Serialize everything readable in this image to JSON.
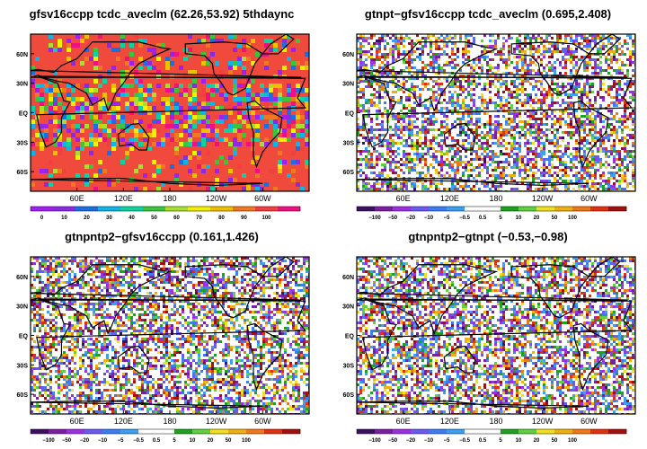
{
  "palettes": {
    "abs": [
      "#a020f0",
      "#8a2be2",
      "#1e6ee0",
      "#10b4e6",
      "#10d2a0",
      "#3cc43c",
      "#a8e030",
      "#f0f000",
      "#f0c000",
      "#f07820",
      "#f04040",
      "#f01080"
    ],
    "diff": [
      "#3c1060",
      "#7a1fa0",
      "#9b30e0",
      "#6a5af0",
      "#3c7cf0",
      "#3ca0f0",
      "#ffffff",
      "#ffffff",
      "#20a020",
      "#60d040",
      "#f0e020",
      "#f0b010",
      "#f07818",
      "#e03010",
      "#a01010"
    ]
  },
  "panels": [
    {
      "id": "p1",
      "title": "gfsv16ccpp  tcdc_aveclm  (62.26,53.92)  5thdaync",
      "type": "abs",
      "lon_labels": [
        "60E",
        "120E",
        "180",
        "120W",
        "60W"
      ],
      "lat_labels": [
        "60N",
        "30N",
        "EQ",
        "30S",
        "60S"
      ],
      "colorbar_labels": [
        "0",
        "10",
        "20",
        "30",
        "40",
        "50",
        "60",
        "70",
        "80",
        "90",
        "100"
      ]
    },
    {
      "id": "p2",
      "title": "gtnpt−gfsv16ccpp  tcdc_aveclm  (0.695,2.408)",
      "type": "diff",
      "lon_labels": [
        "60E",
        "120E",
        "180",
        "120W",
        "60W"
      ],
      "lat_labels": [
        "60N",
        "30N",
        "EQ",
        "30S",
        "60S"
      ],
      "colorbar_labels": [
        "−100",
        "−50",
        "−20",
        "−10",
        "−5",
        "−0.5",
        "0.5",
        "5",
        "10",
        "20",
        "50",
        "100"
      ]
    },
    {
      "id": "p3",
      "title": "gtnpntp2−gfsv16ccpp  (0.161,1.426)",
      "type": "diff",
      "lon_labels": [
        "60E",
        "120E",
        "180",
        "120W",
        "60W"
      ],
      "lat_labels": [
        "60N",
        "30N",
        "EQ",
        "30S",
        "60S"
      ],
      "colorbar_labels": [
        "−100",
        "−50",
        "−20",
        "−10",
        "−5",
        "−0.5",
        "0.5",
        "5",
        "10",
        "20",
        "50",
        "100"
      ]
    },
    {
      "id": "p4",
      "title": "gtnpntp2−gtnpt  (−0.53,−0.98)",
      "type": "diff",
      "lon_labels": [
        "60E",
        "120E",
        "180",
        "120W",
        "60W"
      ],
      "lat_labels": [
        "60N",
        "30N",
        "EQ",
        "30S",
        "60S"
      ],
      "colorbar_labels": [
        "−100",
        "−50",
        "−20",
        "−10",
        "−5",
        "−0.5",
        "0.5",
        "5",
        "10",
        "20",
        "50",
        "100"
      ]
    }
  ]
}
